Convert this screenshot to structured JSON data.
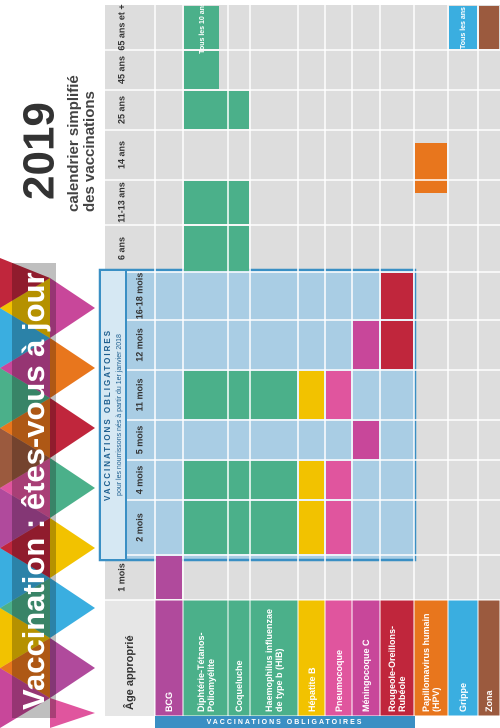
{
  "title": "Vaccination : êtes-vous à jour ?",
  "year": "2019",
  "subtitle": [
    "calendrier simplifié",
    "des vaccinations"
  ],
  "banner": {
    "title": "VACCINATIONS OBLIGATOIRES",
    "subtitle": "pour les nourrissons nés à partir du 1er janvier 2018"
  },
  "side_label": "VACCINATIONS OBLIGATOIRES",
  "table": {
    "age_header": "Âge approprié",
    "ages": [
      "1 mois",
      "2 mois",
      "4 mois",
      "5 mois",
      "11 mois",
      "12 mois",
      "16-18 mois",
      "6 ans",
      "11-13 ans",
      "14 ans",
      "25 ans",
      "45 ans",
      "65 ans et +"
    ],
    "vaccines": [
      "BCG",
      "Diphtérie-Tétanos-Poliomyélite",
      "Coqueluche",
      "Haemophilus influenzae de type b (HIB)",
      "Hépatite B",
      "Pneumocoque",
      "Méningocoque C",
      "Rougeole-Oreillons-Rubéole",
      "Papillomavirus humain (HPV)",
      "Grippe",
      "Zona"
    ],
    "notes": [
      "Tous les 10 ans",
      "Tous les ans"
    ]
  }
}
